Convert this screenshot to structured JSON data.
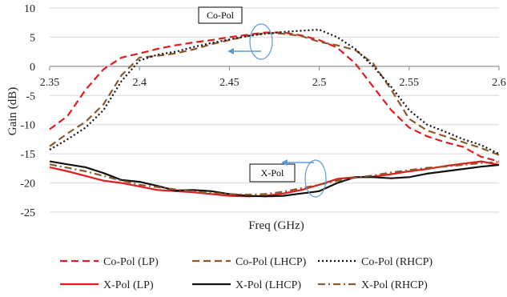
{
  "chart_data": {
    "type": "line",
    "xlabel": "Freq (GHz)",
    "ylabel": "Gain (dB)",
    "xlim": [
      2.35,
      2.6
    ],
    "ylim": [
      -25,
      10
    ],
    "x_ticks": [
      "2.35",
      "2.4",
      "2.45",
      "2.5",
      "2.55",
      "2.6"
    ],
    "y_ticks": [
      "10",
      "5",
      "0",
      "-5",
      "-10",
      "-15",
      "-20",
      "-25"
    ],
    "grid": "horizontal",
    "legend_position": "bottom",
    "annotations": [
      "Co-Pol",
      "X-Pol"
    ],
    "series": [
      {
        "name": "Co-Pol (LP)",
        "color": "#e41a1c",
        "style": "dash",
        "x": [
          2.35,
          2.36,
          2.37,
          2.38,
          2.39,
          2.4,
          2.41,
          2.42,
          2.43,
          2.44,
          2.45,
          2.46,
          2.47,
          2.48,
          2.49,
          2.5,
          2.51,
          2.52,
          2.53,
          2.54,
          2.55,
          2.56,
          2.57,
          2.58,
          2.59,
          2.6
        ],
        "y": [
          -10.8,
          -8.5,
          -4,
          -0.5,
          1.5,
          2.2,
          3,
          3.6,
          4.1,
          4.5,
          5,
          5.4,
          5.8,
          5.8,
          5.3,
          4.5,
          3.2,
          0.5,
          -3.5,
          -7.5,
          -10.5,
          -12,
          -13,
          -13.8,
          -15.5,
          -16.3
        ]
      },
      {
        "name": "Co-Pol (LHCP)",
        "color": "#8b5a2b",
        "style": "dash",
        "x": [
          2.35,
          2.36,
          2.37,
          2.38,
          2.39,
          2.4,
          2.41,
          2.42,
          2.43,
          2.44,
          2.45,
          2.46,
          2.47,
          2.48,
          2.49,
          2.5,
          2.51,
          2.52,
          2.53,
          2.54,
          2.55,
          2.56,
          2.57,
          2.58,
          2.59,
          2.6
        ],
        "y": [
          -13.7,
          -11.5,
          -9.5,
          -6.5,
          -1.5,
          1.5,
          1.8,
          2.2,
          2.9,
          3.8,
          4.5,
          5.2,
          5.7,
          5.6,
          5.2,
          4.2,
          3.6,
          2.8,
          0.5,
          -4,
          -9,
          -11,
          -12,
          -13,
          -14,
          -15.2
        ]
      },
      {
        "name": "Co-Pol (RHCP)",
        "color": "#111111",
        "style": "dot",
        "x": [
          2.35,
          2.36,
          2.37,
          2.38,
          2.39,
          2.4,
          2.41,
          2.42,
          2.43,
          2.44,
          2.45,
          2.46,
          2.47,
          2.48,
          2.49,
          2.5,
          2.51,
          2.52,
          2.53,
          2.54,
          2.55,
          2.56,
          2.57,
          2.58,
          2.59,
          2.6
        ],
        "y": [
          -14.3,
          -12.5,
          -10.5,
          -7.5,
          -2.5,
          1,
          2,
          2.5,
          3.3,
          4,
          4.6,
          5.2,
          5.6,
          5.9,
          6.1,
          6.3,
          5,
          3,
          0,
          -3.5,
          -7.5,
          -10,
          -11.2,
          -12.5,
          -13.5,
          -15
        ]
      },
      {
        "name": "X-Pol (LP)",
        "color": "#e41a1c",
        "style": "solid",
        "x": [
          2.35,
          2.36,
          2.37,
          2.38,
          2.39,
          2.4,
          2.41,
          2.42,
          2.43,
          2.44,
          2.45,
          2.46,
          2.47,
          2.48,
          2.49,
          2.5,
          2.51,
          2.52,
          2.53,
          2.54,
          2.55,
          2.56,
          2.57,
          2.58,
          2.59,
          2.6
        ],
        "y": [
          -17.3,
          -18,
          -18.8,
          -19.6,
          -20,
          -20.6,
          -21.2,
          -21.4,
          -21.6,
          -21.9,
          -22.2,
          -22.3,
          -22.2,
          -21.8,
          -21.2,
          -20.3,
          -19.3,
          -19,
          -18.9,
          -18.5,
          -18,
          -17.6,
          -17.1,
          -16.7,
          -16.3,
          -16.9
        ]
      },
      {
        "name": "X-Pol (LHCP)",
        "color": "#111111",
        "style": "solid",
        "x": [
          2.35,
          2.36,
          2.37,
          2.38,
          2.39,
          2.4,
          2.41,
          2.42,
          2.43,
          2.44,
          2.45,
          2.46,
          2.47,
          2.48,
          2.49,
          2.5,
          2.51,
          2.52,
          2.53,
          2.54,
          2.55,
          2.56,
          2.57,
          2.58,
          2.59,
          2.6
        ],
        "y": [
          -16.3,
          -16.8,
          -17.3,
          -18.3,
          -19.5,
          -19.8,
          -20.5,
          -21.3,
          -21.2,
          -21.4,
          -21.9,
          -22.2,
          -22.3,
          -22.2,
          -21.8,
          -21.4,
          -20,
          -19,
          -19,
          -19.2,
          -19,
          -18.4,
          -18,
          -17.6,
          -17.2,
          -16.9
        ]
      },
      {
        "name": "X-Pol (RHCP)",
        "color": "#8b5a2b",
        "style": "dashdot",
        "x": [
          2.35,
          2.36,
          2.37,
          2.38,
          2.39,
          2.4,
          2.41,
          2.42,
          2.43,
          2.44,
          2.45,
          2.46,
          2.47,
          2.48,
          2.49,
          2.5,
          2.51,
          2.52,
          2.53,
          2.54,
          2.55,
          2.56,
          2.57,
          2.58,
          2.59,
          2.6
        ],
        "y": [
          -16.8,
          -17.4,
          -18,
          -18.8,
          -19.6,
          -20.3,
          -20.7,
          -21.1,
          -21.5,
          -21.7,
          -21.9,
          -22,
          -21.9,
          -21.5,
          -20.9,
          -20.3,
          -19.6,
          -19.1,
          -18.7,
          -18.2,
          -17.8,
          -17.4,
          -17.2,
          -16.9,
          -16.6,
          -16.4
        ]
      }
    ]
  }
}
